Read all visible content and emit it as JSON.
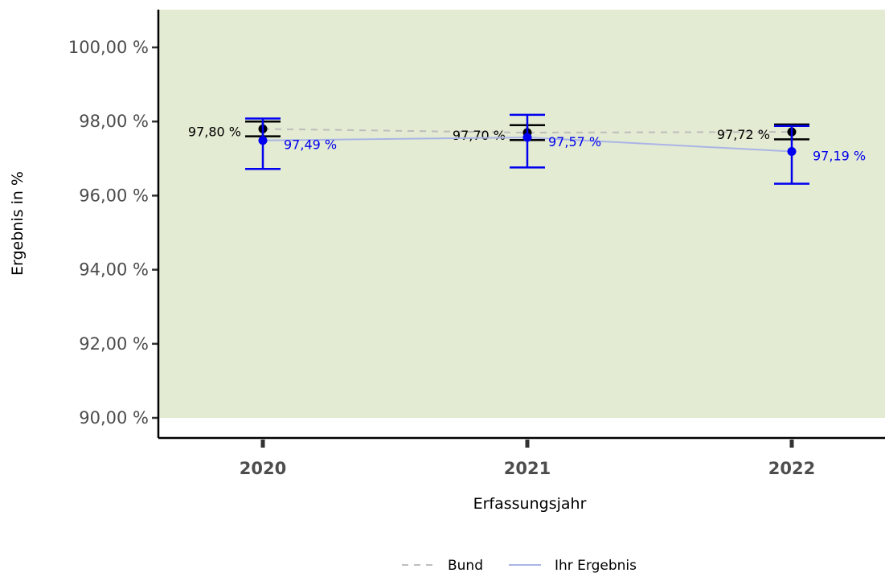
{
  "chart_data": {
    "type": "line",
    "xlabel": "Erfassungsjahr",
    "ylabel": "Ergebnis in %",
    "categories": [
      "2020",
      "2021",
      "2022"
    ],
    "ylim": [
      90,
      101
    ],
    "yticks": [
      90,
      92,
      94,
      96,
      98,
      100
    ],
    "ytick_labels": [
      "90,00 %",
      "92,00 %",
      "94,00 %",
      "96,00 %",
      "98,00 %",
      "100,00 %"
    ],
    "reference_band": {
      "from": 90,
      "to": 101,
      "color": "#e3ebd2"
    },
    "series": [
      {
        "name": "Bund",
        "color": "#000000",
        "line_color": "#bdbdbd",
        "line_style": "dashed",
        "values": [
          97.8,
          97.7,
          97.72
        ],
        "labels": [
          "97,80 %",
          "97,70 %",
          "97,72 %"
        ],
        "ci_low": [
          97.6,
          97.5,
          97.52
        ],
        "ci_high": [
          98.0,
          97.9,
          97.92
        ]
      },
      {
        "name": "Ihr Ergebnis",
        "color": "#0000ee",
        "line_color": "#aab4e6",
        "line_style": "solid",
        "values": [
          97.49,
          97.57,
          97.19
        ],
        "labels": [
          "97,49 %",
          "97,57 %",
          "97,19 %"
        ],
        "ci_low": [
          96.72,
          96.76,
          96.32
        ],
        "ci_high": [
          98.08,
          98.18,
          97.88
        ]
      }
    ],
    "legend": {
      "position": "bottom",
      "entries": [
        "Bund",
        "Ihr Ergebnis"
      ]
    }
  }
}
